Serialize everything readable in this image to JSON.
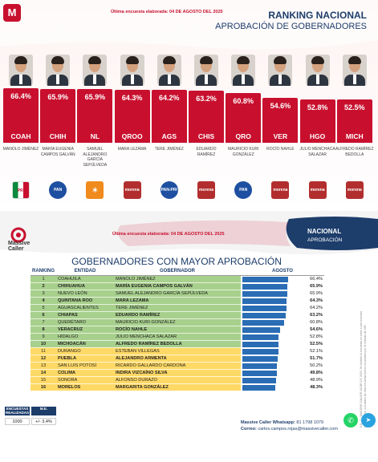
{
  "top": {
    "logo_letter": "M",
    "survey_date": "Última encuesta elaborada:  04 DE AGOSTO DEL 2025",
    "title": "RANKING NACIONAL",
    "subtitle": "APROBACIÓN DE GOBERNADORES"
  },
  "chart_data": {
    "type": "bar",
    "title": "RANKING NACIONAL",
    "subtitle": "APROBACIÓN DE GOBERNADORES",
    "categories": [
      "COAH",
      "CHIH",
      "NL",
      "QROO",
      "AGS",
      "CHIS",
      "QRO",
      "VER",
      "HGO",
      "MICH"
    ],
    "values": [
      66.4,
      65.9,
      65.9,
      64.3,
      64.2,
      63.2,
      60.8,
      54.6,
      52.8,
      52.5
    ],
    "labels": [
      "66.4%",
      "65.9%",
      "65.9%",
      "64.3%",
      "64.2%",
      "63.2%",
      "60.8%",
      "54.6%",
      "52.8%",
      "52.5%"
    ],
    "governors": [
      "MANOLO JIMÉNEZ",
      "MARÍA EUGENIA CAMPOS GALVÁN",
      "SAMUEL ALEJANDRO GARCÍA SEPÚLVEDA",
      "MARA LEZAMA",
      "TERE JIMÉNEZ",
      "EDUARDO RAMÍREZ",
      "MAURICIO KURI GONZÁLEZ",
      "ROCÍO NAHLE",
      "JULIO MENCHACA SALAZAR",
      "ALFREDO RAMÍREZ BEDOLLA"
    ],
    "parties": [
      "PRI",
      "PAN",
      "MC",
      "morena",
      "PAN-PRI",
      "morena",
      "PAN",
      "morena",
      "morena",
      "morena"
    ],
    "bar_color": "#c8102e"
  },
  "party_colors": {
    "PRI": "#ffffff",
    "PAN": "#1e4fa0",
    "MC": "#f08a1c",
    "morena": "#b22e2e",
    "PAN-PRI": "#1e4fa0"
  },
  "bottom": {
    "brand": "Massive\nCaller",
    "survey_date": "Última encuesta elaborada:  04 DE AGOSTO DEL 2025",
    "nacional": "NACIONAL",
    "aprobacion": "APROBACIÓN",
    "table_title": "GOBERNADORES CON MAYOR APROBACIÓN",
    "headers": [
      "RANKING",
      "ENTIDAD",
      "GOBERNADOR",
      "AGOSTO"
    ],
    "rows": [
      {
        "rank": "1",
        "state": "COAHUILA",
        "gov": "MANOLO JIMÉNEZ",
        "val": 66.4,
        "label": "66.4%",
        "color": "g",
        "bold": false
      },
      {
        "rank": "2",
        "state": "CHIHUAHUA",
        "gov": "MARÍA EUGENIA CAMPOS GALVÁN",
        "val": 65.9,
        "label": "65.9%",
        "color": "g",
        "bold": true
      },
      {
        "rank": "3",
        "state": "NUEVO LEÓN",
        "gov": "SAMUEL ALEJANDRO GARCÍA SEPÚLVEDA",
        "val": 65.9,
        "label": "65.9%",
        "color": "g",
        "bold": false
      },
      {
        "rank": "4",
        "state": "QUINTANA ROO",
        "gov": "MARA LEZAMA",
        "val": 64.3,
        "label": "64.3%",
        "color": "g",
        "bold": true
      },
      {
        "rank": "5",
        "state": "AGUASCALIENTES",
        "gov": "TERE JIMÉNEZ",
        "val": 64.2,
        "label": "64.2%",
        "color": "g",
        "bold": false
      },
      {
        "rank": "6",
        "state": "CHIAPAS",
        "gov": "EDUARDO RAMÍREZ",
        "val": 63.2,
        "label": "63.2%",
        "color": "g",
        "bold": true
      },
      {
        "rank": "7",
        "state": "QUERÉTARO",
        "gov": "MAURICIO KURI GONZÁLEZ",
        "val": 60.8,
        "label": "60.8%",
        "color": "g",
        "bold": false
      },
      {
        "rank": "8",
        "state": "VERACRUZ",
        "gov": "ROCÍO NAHLE",
        "val": 54.6,
        "label": "54.6%",
        "color": "g",
        "bold": true
      },
      {
        "rank": "9",
        "state": "HIDALGO",
        "gov": "JULIO MENCHACA SALAZAR",
        "val": 52.8,
        "label": "52.8%",
        "color": "g",
        "bold": false
      },
      {
        "rank": "10",
        "state": "MICHOACÁN",
        "gov": "ALFREDO RAMÍREZ BEDOLLA",
        "val": 52.5,
        "label": "52.5%",
        "color": "g",
        "bold": true
      },
      {
        "rank": "11",
        "state": "DURANGO",
        "gov": "ESTEBAN VILLEGAS",
        "val": 52.1,
        "label": "52.1%",
        "color": "y",
        "bold": false
      },
      {
        "rank": "12",
        "state": "PUEBLA",
        "gov": "ALEJANDRO ARMENTA",
        "val": 51.7,
        "label": "51.7%",
        "color": "y",
        "bold": true
      },
      {
        "rank": "13",
        "state": "SAN LUIS POTOSÍ",
        "gov": "RICARDO GALLARDO CARDONA",
        "val": 50.2,
        "label": "50.2%",
        "color": "y",
        "bold": false
      },
      {
        "rank": "14",
        "state": "COLIMA",
        "gov": "INDIRA VIZCAÍNO SILVA",
        "val": 49.8,
        "label": "49.8%",
        "color": "y",
        "bold": true
      },
      {
        "rank": "15",
        "state": "SONORA",
        "gov": "ALFONSO DURAZO",
        "val": 48.9,
        "label": "48.9%",
        "color": "y",
        "bold": false
      },
      {
        "rank": "16",
        "state": "MORELOS",
        "gov": "MARGARITA GONZÁLEZ",
        "val": 48.3,
        "label": "48.3%",
        "color": "y",
        "bold": true
      }
    ],
    "agosto_max": 70,
    "enc_header_1": "ENCUESTAS REALIZADAS",
    "enc_header_2": "M.E.",
    "enc_value_1": "1000",
    "enc_value_2": "+/- 3.4%",
    "side_note": "S.E. 11 / MASSIVE CALLER SA DE CV, 2024. Se levantó la encuesta en base a una muestra probabilística. Los datos de esta encuesta fueron recabados por el método de IVR.",
    "whatsapp_label": "Massive Caller Whatsapp:",
    "whatsapp_number": "81 1798 1079",
    "email_label": "Correo:",
    "email": "carlos.campos.rojas@massivecaller.com"
  },
  "colors": {
    "red": "#c8102e",
    "navy": "#1d3d6b",
    "green_row": "#a8d08d",
    "yellow_row": "#ffd966",
    "bar_blue": "#2a6db5"
  }
}
